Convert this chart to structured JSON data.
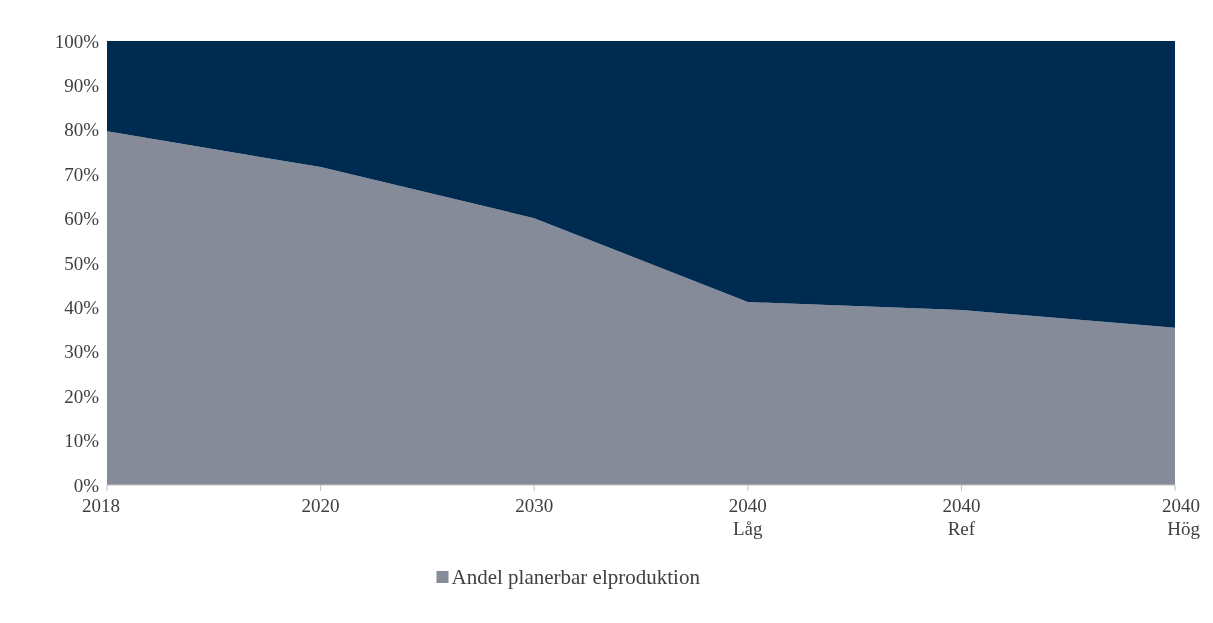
{
  "chart_data": {
    "type": "area",
    "stacked": true,
    "categories": [
      "2018",
      "2020",
      "2030",
      "2040\nLåg",
      "2040\nRef",
      "2040\nHög"
    ],
    "series": [
      {
        "name": "Andel planerbar elproduktion",
        "color": "#868b9a",
        "values": [
          79.7,
          71.6,
          60.1,
          41.2,
          39.4,
          35.4
        ]
      },
      {
        "color": "#002b50",
        "values": [
          20.3,
          28.4,
          39.9,
          58.8,
          60.6,
          64.6
        ]
      }
    ],
    "ylim": [
      0,
      100
    ],
    "yticks": [
      {
        "value": 0,
        "label": "0%"
      },
      {
        "value": 10,
        "label": "10%"
      },
      {
        "value": 20,
        "label": "20%"
      },
      {
        "value": 30,
        "label": "30%"
      },
      {
        "value": 40,
        "label": "40%"
      },
      {
        "value": 50,
        "label": "50%"
      },
      {
        "value": 60,
        "label": "60%"
      },
      {
        "value": 70,
        "label": "70%"
      },
      {
        "value": 80,
        "label": "80%"
      },
      {
        "value": 90,
        "label": "90%"
      },
      {
        "value": 100,
        "label": "100%"
      }
    ],
    "legend": "bottom"
  }
}
